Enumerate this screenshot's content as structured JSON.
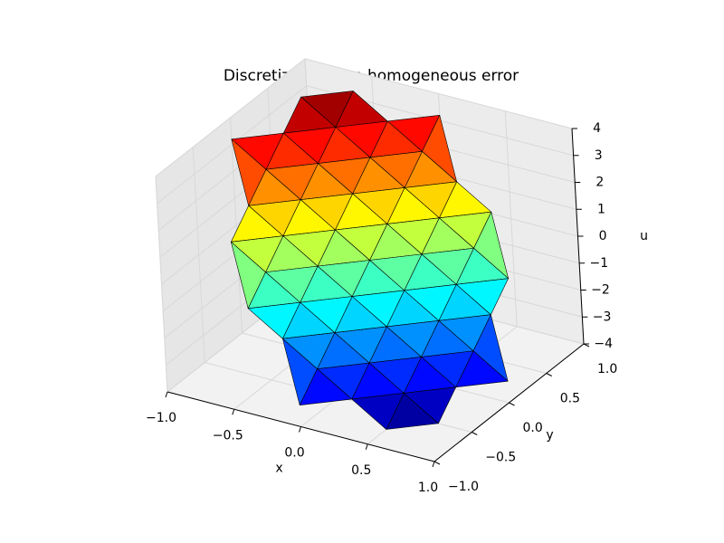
{
  "chart_data": {
    "type": "surface3d",
    "title": "Discretization non homogeneous error",
    "xlabel": "x",
    "ylabel": "y",
    "zlabel": "u",
    "xlim": [
      -1,
      1
    ],
    "ylim": [
      -1,
      1
    ],
    "zlim": [
      -4,
      4
    ],
    "xticks": [
      {
        "value": -1,
        "label": "−1.0"
      },
      {
        "value": -0.5,
        "label": "−0.5"
      },
      {
        "value": 0,
        "label": "0.0"
      },
      {
        "value": 0.5,
        "label": "0.5"
      },
      {
        "value": 1,
        "label": "1.0"
      }
    ],
    "yticks": [
      {
        "value": -1,
        "label": "−1.0"
      },
      {
        "value": -0.5,
        "label": "−0.5"
      },
      {
        "value": 0,
        "label": "0.0"
      },
      {
        "value": 0.5,
        "label": "0.5"
      },
      {
        "value": 1,
        "label": "1.0"
      }
    ],
    "zticks": [
      {
        "value": -4,
        "label": "−4"
      },
      {
        "value": -3,
        "label": "−3"
      },
      {
        "value": -2,
        "label": "−2"
      },
      {
        "value": -1,
        "label": "−1"
      },
      0,
      1,
      2,
      3,
      4
    ],
    "colormap": "jet",
    "grid": true,
    "x": [
      -1,
      -0.75,
      -0.5,
      -0.25,
      0,
      0.25,
      0.5,
      0.75,
      1
    ],
    "y": [
      -1,
      -0.75,
      -0.5,
      -0.25,
      0,
      0.25,
      0.5,
      0.75,
      1
    ],
    "z": [
      [
        null,
        null,
        null,
        null,
        3.2,
        null,
        null,
        null,
        null
      ],
      [
        null,
        null,
        0.8,
        1.6,
        2.4,
        3.2,
        4.0,
        null,
        null
      ],
      [
        null,
        -0.8,
        0,
        0.8,
        1.6,
        2.4,
        3.2,
        4.0,
        null
      ],
      [
        null,
        -1.6,
        -0.8,
        0,
        0.8,
        1.6,
        2.4,
        3.2,
        null
      ],
      [
        -3.2,
        -2.4,
        -1.6,
        -0.8,
        0,
        0.8,
        1.6,
        2.4,
        3.2
      ],
      [
        null,
        -3.2,
        -2.4,
        -1.6,
        -0.8,
        0,
        0.8,
        1.6,
        null
      ],
      [
        null,
        -4.0,
        -3.2,
        -2.4,
        -1.6,
        -0.8,
        0,
        0.8,
        null
      ],
      [
        null,
        null,
        -4.0,
        -3.2,
        -2.4,
        -1.6,
        -0.8,
        null,
        null
      ],
      [
        null,
        null,
        null,
        null,
        -3.2,
        null,
        null,
        null,
        null
      ]
    ]
  }
}
